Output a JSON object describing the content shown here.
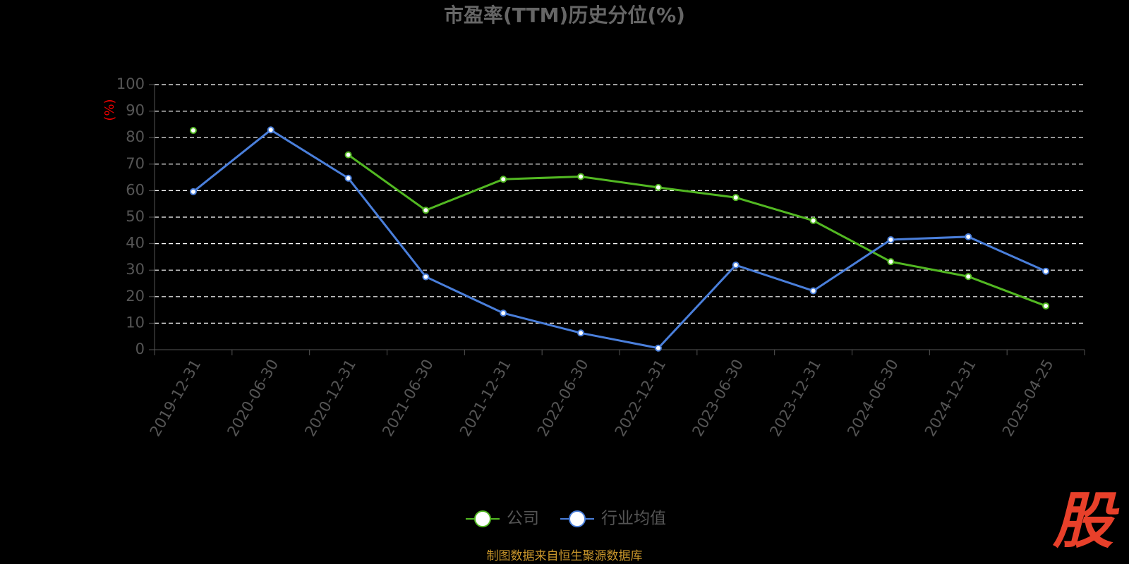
{
  "chart_data": {
    "type": "line",
    "title": "市盈率(TTM)历史分位(%)",
    "y_label": "(%)",
    "categories": [
      "2019-12-31",
      "2020-06-30",
      "2020-12-31",
      "2021-06-30",
      "2021-12-31",
      "2022-06-30",
      "2022-12-31",
      "2023-06-30",
      "2023-12-31",
      "2024-06-30",
      "2024-12-31",
      "2025-04-25"
    ],
    "series": [
      {
        "name": "公司",
        "color": "#52b822",
        "values": [
          82.7,
          null,
          73.5,
          52.6,
          64.3,
          65.3,
          61.2,
          57.4,
          48.7,
          33.2,
          27.6,
          16.5
        ]
      },
      {
        "name": "行业均值",
        "color": "#4a7fdb",
        "values": [
          59.6,
          82.9,
          64.7,
          27.5,
          13.8,
          6.3,
          0.6,
          31.9,
          22.2,
          41.5,
          42.6,
          29.6
        ]
      }
    ],
    "ylim": [
      0,
      100
    ],
    "yticks": [
      0,
      10,
      20,
      30,
      40,
      50,
      60,
      70,
      80,
      90,
      100
    ],
    "grid": true,
    "legend": "bottom",
    "source": "制图数据来自恒生聚源数据库",
    "logo": "股"
  }
}
